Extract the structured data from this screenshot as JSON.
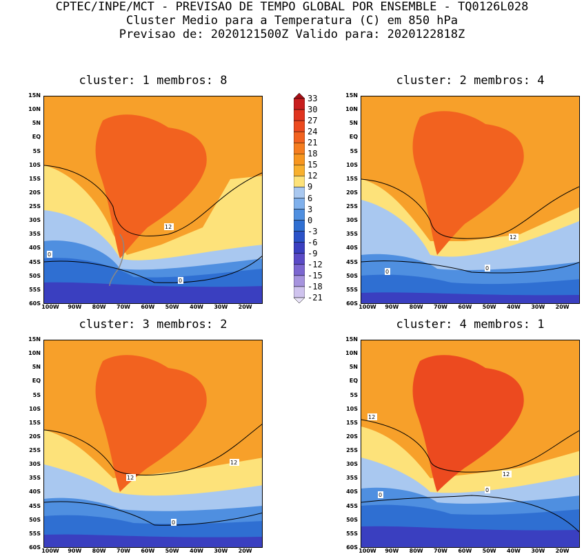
{
  "header": {
    "line1": "CPTEC/INPE/MCT - PREVISAO DE TEMPO GLOBAL POR ENSEMBLE - TQ0126L028",
    "line2": "Cluster Medio para a Temperatura (C) em 850 hPa",
    "line3": "Previsao de: 2020121500Z   Valido para: 2020122818Z"
  },
  "panels": [
    {
      "title": "cluster: 1   membros: 8",
      "contour_labels": [
        "12",
        "0",
        "0"
      ]
    },
    {
      "title": "cluster: 2   membros: 4",
      "contour_labels": [
        "12",
        "0",
        "0"
      ]
    },
    {
      "title": "cluster: 3   membros: 2",
      "contour_labels": [
        "12",
        "12",
        "0"
      ]
    },
    {
      "title": "cluster: 4   membros: 1",
      "contour_labels": [
        "12",
        "12",
        "0",
        "0"
      ]
    }
  ],
  "lat_ticks": [
    "15N",
    "10N",
    "5N",
    "EQ",
    "5S",
    "10S",
    "15S",
    "20S",
    "25S",
    "30S",
    "35S",
    "40S",
    "45S",
    "50S",
    "55S",
    "60S"
  ],
  "lon_ticks": [
    "100W",
    "90W",
    "80W",
    "70W",
    "60W",
    "50W",
    "40W",
    "30W",
    "20W"
  ],
  "colorbar": {
    "labels": [
      "33",
      "30",
      "27",
      "24",
      "21",
      "18",
      "15",
      "12",
      "9",
      "6",
      "3",
      "0",
      "-3",
      "-6",
      "-9",
      "-12",
      "-15",
      "-18",
      "-21"
    ],
    "colors": [
      "#a50f15",
      "#c81e1e",
      "#e0341f",
      "#ec4a1f",
      "#f2621f",
      "#f57d1f",
      "#f7961f",
      "#f8b02e",
      "#fde27a",
      "#a9c8f0",
      "#7fb0ec",
      "#4f8fe0",
      "#2f6fd2",
      "#2b52c8",
      "#3a3fc0",
      "#5a4ac6",
      "#7b66d0",
      "#a693de",
      "#cfc3ee",
      "#e8e2f7"
    ]
  },
  "colors": {
    "warm_ocean": "#f7a02a",
    "land_hot": "#f2621f",
    "land_hotter": "#ec4a1f",
    "pale_yellow": "#fde27a",
    "light_blue": "#a9c8f0",
    "mid_blue": "#4f8fe0",
    "deep_blue": "#2f6fd2",
    "purple": "#3a3fc0"
  }
}
